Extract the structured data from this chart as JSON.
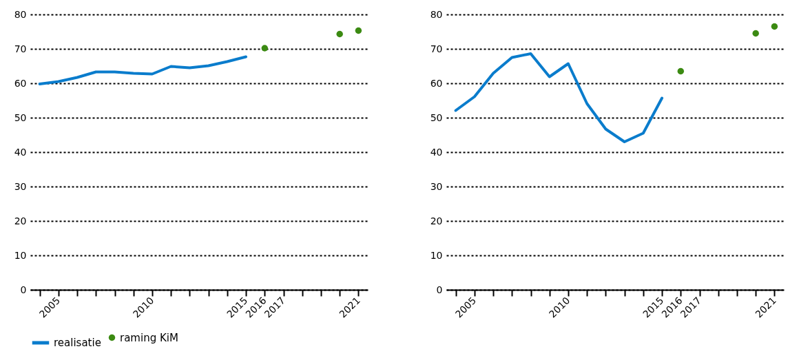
{
  "chart_data": [
    {
      "type": "line",
      "xlim": [
        2003.5,
        2021.5
      ],
      "ylim": [
        0,
        80
      ],
      "yticks": [
        0,
        10,
        20,
        30,
        40,
        50,
        60,
        70,
        80
      ],
      "xticks": [
        {
          "value": 2004,
          "label": null
        },
        2005,
        {
          "value": 2006,
          "label": null
        },
        {
          "value": 2007,
          "label": null
        },
        {
          "value": 2008,
          "label": null
        },
        {
          "value": 2009,
          "label": null
        },
        2010,
        {
          "value": 2011,
          "label": null
        },
        {
          "value": 2012,
          "label": null
        },
        {
          "value": 2013,
          "label": null
        },
        {
          "value": 2014,
          "label": null
        },
        2015,
        2016,
        2017,
        {
          "value": 2018,
          "label": null
        },
        {
          "value": 2019,
          "label": null
        },
        {
          "value": 2020,
          "label": null
        },
        2021
      ],
      "grid": "y",
      "legend": "bottom",
      "series": [
        {
          "name": "realisatie",
          "color": "#0a7ccc",
          "x": [
            2004,
            2005,
            2006,
            2007,
            2008,
            2009,
            2010,
            2011,
            2012,
            2013,
            2014,
            2015
          ],
          "values": [
            59.8,
            60.5,
            61.7,
            63.3,
            63.3,
            62.9,
            62.7,
            64.9,
            64.5,
            65.1,
            66.3,
            67.7
          ]
        },
        {
          "name": "raming KiM",
          "type": "scatter",
          "color": "#3b8a12",
          "x": [
            2016,
            2020,
            2021
          ],
          "values": [
            70.2,
            74.3,
            75.3
          ]
        }
      ]
    },
    {
      "type": "line",
      "xlim": [
        2003.5,
        2021.5
      ],
      "ylim": [
        0,
        80
      ],
      "yticks": [
        0,
        10,
        20,
        30,
        40,
        50,
        60,
        70,
        80
      ],
      "xticks": [
        {
          "value": 2004,
          "label": null
        },
        2005,
        {
          "value": 2006,
          "label": null
        },
        {
          "value": 2007,
          "label": null
        },
        {
          "value": 2008,
          "label": null
        },
        {
          "value": 2009,
          "label": null
        },
        2010,
        {
          "value": 2011,
          "label": null
        },
        {
          "value": 2012,
          "label": null
        },
        {
          "value": 2013,
          "label": null
        },
        {
          "value": 2014,
          "label": null
        },
        2015,
        2016,
        2017,
        {
          "value": 2018,
          "label": null
        },
        {
          "value": 2019,
          "label": null
        },
        {
          "value": 2020,
          "label": null
        },
        2021
      ],
      "grid": "y",
      "legend": "bottom",
      "series": [
        {
          "name": "realisatie",
          "color": "#0a7ccc",
          "x": [
            2004,
            2005,
            2006,
            2007,
            2008,
            2009,
            2010,
            2011,
            2012,
            2013,
            2014,
            2015
          ],
          "values": [
            52.1,
            56.1,
            62.9,
            67.5,
            68.6,
            61.9,
            65.7,
            54.1,
            46.7,
            43.0,
            45.5,
            55.7
          ]
        },
        {
          "name": "raming KiM",
          "type": "scatter",
          "color": "#3b8a12",
          "x": [
            2016,
            2020,
            2021
          ],
          "values": [
            63.5,
            74.5,
            76.5
          ]
        }
      ]
    }
  ]
}
